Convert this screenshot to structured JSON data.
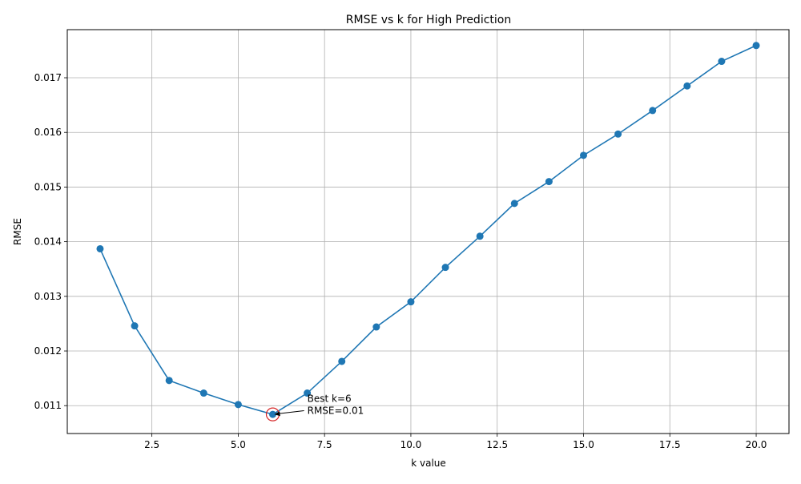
{
  "chart_data": {
    "type": "line",
    "title": "RMSE vs k for High Prediction",
    "xlabel": "k value",
    "ylabel": "RMSE",
    "xlim": [
      0.05,
      20.95
    ],
    "ylim": [
      0.01049,
      0.01788
    ],
    "x_ticks": [
      2.5,
      5.0,
      7.5,
      10.0,
      12.5,
      15.0,
      17.5,
      20.0
    ],
    "x_tick_labels": [
      "2.5",
      "5.0",
      "7.5",
      "10.0",
      "12.5",
      "15.0",
      "17.5",
      "20.0"
    ],
    "y_ticks": [
      0.011,
      0.012,
      0.013,
      0.014,
      0.015,
      0.016,
      0.017
    ],
    "y_tick_labels": [
      "0.011",
      "0.012",
      "0.013",
      "0.014",
      "0.015",
      "0.016",
      "0.017"
    ],
    "grid": true,
    "series": [
      {
        "color": "#1f77b4",
        "marker": "circle",
        "x": [
          1,
          2,
          3,
          4,
          5,
          6,
          7,
          8,
          9,
          10,
          11,
          12,
          13,
          14,
          15,
          16,
          17,
          18,
          19,
          20
        ],
        "y": [
          0.01387,
          0.01246,
          0.01146,
          0.01123,
          0.01102,
          0.01084,
          0.01123,
          0.01181,
          0.01244,
          0.0129,
          0.01353,
          0.0141,
          0.0147,
          0.0151,
          0.01558,
          0.01597,
          0.0164,
          0.01685,
          0.0173,
          0.01759
        ]
      }
    ],
    "highlight": {
      "x": 6,
      "y": 0.01084,
      "color": "#d62728"
    },
    "annotation": {
      "lines": [
        "Best k=6",
        "RMSE=0.01"
      ],
      "x": 7,
      "y": 0.01085
    }
  }
}
